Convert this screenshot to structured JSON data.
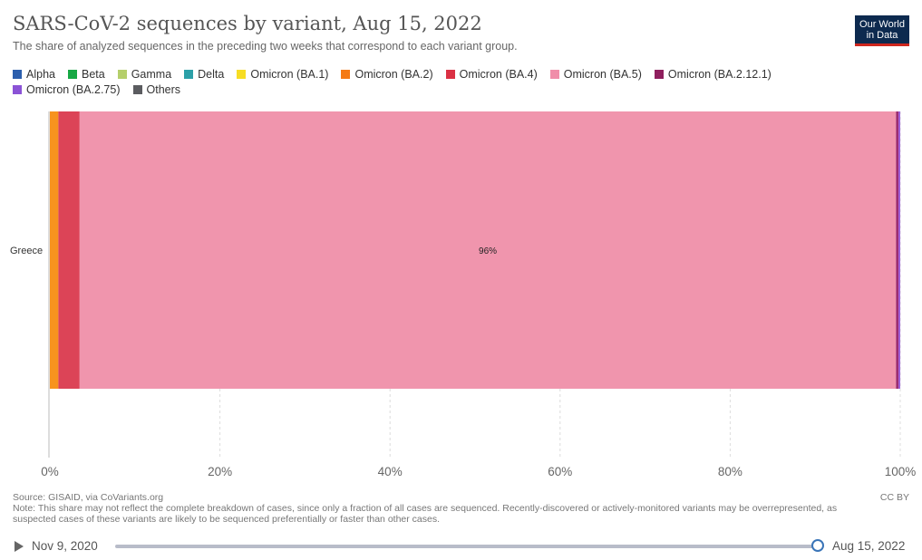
{
  "header": {
    "title": "SARS-CoV-2 sequences by variant, Aug 15, 2022",
    "subtitle": "The share of analyzed sequences in the preceding two weeks that correspond to each variant group.",
    "logo_line1": "Our World",
    "logo_line2": "in Data"
  },
  "legend": [
    {
      "label": "Alpha",
      "color": "#2c5fad"
    },
    {
      "label": "Beta",
      "color": "#17a844"
    },
    {
      "label": "Gamma",
      "color": "#b5cf6b"
    },
    {
      "label": "Delta",
      "color": "#2ca0a8"
    },
    {
      "label": "Omicron (BA.1)",
      "color": "#f7dd24"
    },
    {
      "label": "Omicron (BA.2)",
      "color": "#f57a14"
    },
    {
      "label": "Omicron (BA.4)",
      "color": "#db3144"
    },
    {
      "label": "Omicron (BA.5)",
      "color": "#f08da9"
    },
    {
      "label": "Omicron (BA.2.12.1)",
      "color": "#8f1f5e"
    },
    {
      "label": "Omicron (BA.2.75)",
      "color": "#8b53d6"
    },
    {
      "label": "Others",
      "color": "#5b5c60"
    }
  ],
  "chart_data": {
    "type": "bar",
    "orientation": "horizontal",
    "stacked": true,
    "categories": [
      "Greece"
    ],
    "xlim": [
      0,
      100
    ],
    "x_tick_labels": [
      "0%",
      "20%",
      "40%",
      "60%",
      "80%",
      "100%"
    ],
    "grid": true,
    "series": [
      {
        "name": "Omicron (BA.2)",
        "values": [
          1
        ],
        "color": "#f7931e"
      },
      {
        "name": "Omicron (BA.4)",
        "values": [
          2.5
        ],
        "color": "#dc4457"
      },
      {
        "name": "Omicron (BA.5)",
        "values": [
          96
        ],
        "color": "#f095ad",
        "data_label": "96%"
      },
      {
        "name": "Omicron (BA.2.12.1)",
        "values": [
          0.3
        ],
        "color": "#9c2d70"
      },
      {
        "name": "Omicron (BA.2.75)",
        "values": [
          0.2
        ],
        "color": "#9a5ad8"
      }
    ]
  },
  "footer": {
    "source": "Source: GISAID, via CoVariants.org",
    "note": "Note: This share may not reflect the complete breakdown of cases, since only a fraction of all cases are sequenced. Recently-discovered or actively-monitored variants may be overrepresented, as suspected cases of these variants are likely to be sequenced preferentially or faster than other cases.",
    "license": "CC BY"
  },
  "timeline": {
    "start": "Nov 9, 2020",
    "end": "Aug 15, 2022",
    "position": 1.0
  }
}
